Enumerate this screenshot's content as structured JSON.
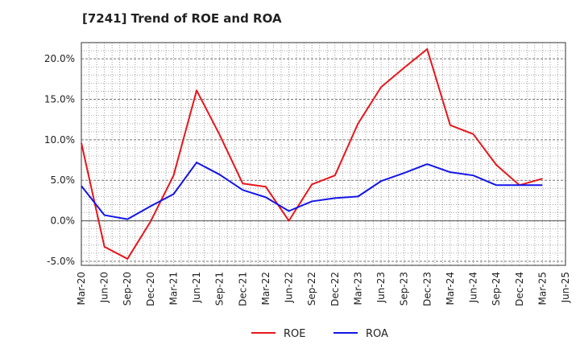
{
  "chart_data": {
    "type": "line",
    "title": "[7241]  Trend of ROE and ROA",
    "xlabel": "",
    "ylabel": "",
    "ylim": [
      -5.5,
      22
    ],
    "yticks": [
      -5,
      0,
      5,
      10,
      15,
      20
    ],
    "y_tick_labels": [
      "-5.0%",
      "0.0%",
      "5.0%",
      "10.0%",
      "15.0%",
      "20.0%"
    ],
    "x_tick_labels": [
      "Mar-20",
      "Jun-20",
      "Sep-20",
      "Dec-20",
      "Mar-21",
      "Jun-21",
      "Sep-21",
      "Dec-21",
      "Mar-22",
      "Jun-22",
      "Sep-22",
      "Dec-22",
      "Mar-23",
      "Jun-23",
      "Sep-23",
      "Dec-23",
      "Mar-24",
      "Jun-24",
      "Sep-24",
      "Dec-24",
      "Mar-25",
      "Jun-25"
    ],
    "grid": true,
    "legend_position": "bottom-center",
    "x": [
      "Mar-20",
      "Jun-20",
      "Sep-20",
      "Dec-20",
      "Mar-21",
      "Jun-21",
      "Sep-21",
      "Dec-21",
      "Mar-22",
      "Jun-22",
      "Sep-22",
      "Dec-22",
      "Mar-23",
      "Jun-23",
      "Sep-23",
      "Dec-23",
      "Mar-24",
      "Jun-24",
      "Sep-24",
      "Dec-24",
      "Mar-25"
    ],
    "series": [
      {
        "name": "ROE",
        "color": "#e8161b",
        "values": [
          9.6,
          -3.2,
          -4.7,
          -0.1,
          5.6,
          16.1,
          10.6,
          4.6,
          4.2,
          0.0,
          4.5,
          5.6,
          12.0,
          16.5,
          18.9,
          21.2,
          11.8,
          10.7,
          6.9,
          4.4,
          5.2
        ]
      },
      {
        "name": "ROA",
        "color": "#1515e6",
        "values": [
          4.3,
          0.7,
          0.2,
          1.8,
          3.3,
          7.2,
          5.7,
          3.8,
          2.9,
          1.2,
          2.4,
          2.8,
          3.0,
          4.9,
          5.9,
          7.0,
          6.0,
          5.6,
          4.4,
          4.4,
          4.4
        ]
      }
    ]
  }
}
